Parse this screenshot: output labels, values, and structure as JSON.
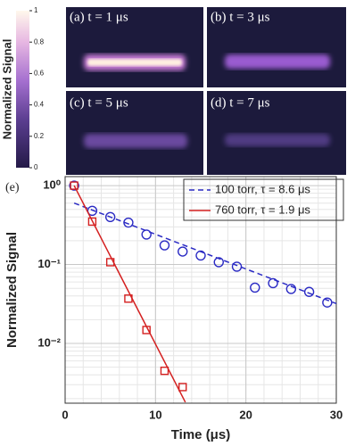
{
  "chart_data": [
    {
      "type": "colorbar",
      "ylabel": "Normalized Signal",
      "ylim": [
        0,
        1
      ],
      "yticks": [
        0,
        0.2,
        0.4,
        0.6,
        0.8,
        1
      ],
      "panels": [
        "(a) t = 1 μs",
        "(b) t = 3 μs",
        "(c) t = 5 μs",
        "(d) t = 7 μs"
      ]
    },
    {
      "type": "scatter",
      "panel_label": "(e)",
      "xlabel": "Time (μs)",
      "ylabel": "Normalized Signal",
      "log_y": true,
      "grid": true,
      "legend": "upper right",
      "xlim": [
        0,
        30
      ],
      "xticks": [
        0,
        10,
        20,
        30
      ],
      "ylim": [
        0.00175,
        1.3
      ],
      "yticks": [
        {
          "value": 0.01,
          "label": "10⁻²"
        },
        {
          "value": 0.1,
          "label": "10⁻¹"
        },
        {
          "value": 1,
          "label": "10⁰"
        }
      ],
      "series": [
        {
          "name": "100 torr, τ = 8.6 μs",
          "color": "#2b2bc4",
          "marker": "circle",
          "linestyle": "dashed",
          "x": [
            1,
            3,
            5,
            7,
            9,
            11,
            13,
            15,
            17,
            19,
            21,
            23,
            25,
            27,
            29
          ],
          "values": [
            1.0,
            0.48,
            0.4,
            0.34,
            0.24,
            0.175,
            0.146,
            0.13,
            0.107,
            0.094,
            0.051,
            0.058,
            0.049,
            0.045,
            0.033
          ],
          "fit_x": [
            1,
            30
          ],
          "fit_values": [
            0.6,
            0.032
          ]
        },
        {
          "name": "760 torr, τ = 1.9 μs",
          "color": "#d42020",
          "marker": "square",
          "linestyle": "solid",
          "x": [
            1,
            3,
            5,
            7,
            9,
            11,
            13
          ],
          "values": [
            1.0,
            0.35,
            0.107,
            0.037,
            0.0148,
            0.0045,
            0.0028
          ],
          "fit_x": [
            1,
            13.3
          ],
          "fit_values": [
            1.0,
            0.0018
          ]
        }
      ]
    }
  ]
}
